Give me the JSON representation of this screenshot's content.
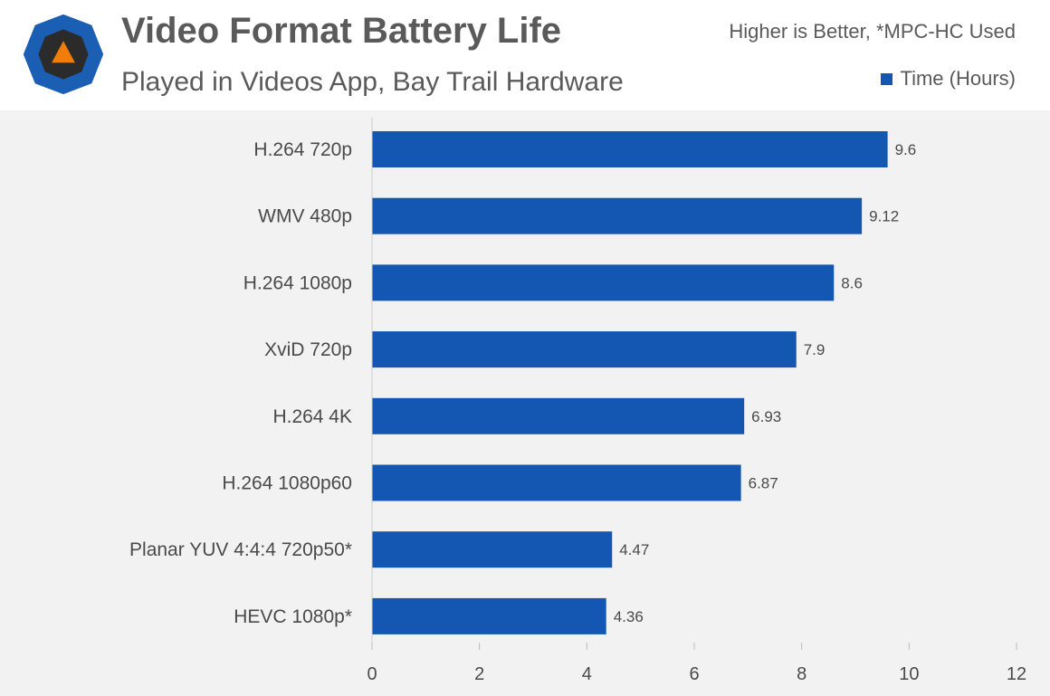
{
  "colors": {
    "bar": "#1457b3",
    "logo_outer": "#1a5fb4",
    "logo_inner": "#2b2b2b",
    "logo_triangle": "#f07d0a"
  },
  "icons": {
    "logo": "techspot-logo-icon"
  },
  "header": {
    "title": "Video Format Battery Life",
    "subtitle": "Played in Videos App, Bay Trail Hardware",
    "note": "Higher is Better, *MPC-HC Used",
    "legend_label": "Time (Hours)"
  },
  "chart_data": {
    "type": "bar",
    "orientation": "horizontal",
    "title": "Video Format Battery Life",
    "subtitle": "Played in Videos App, Bay Trail Hardware",
    "categories": [
      "H.264 720p",
      "WMV 480p",
      "H.264 1080p",
      "XviD 720p",
      "H.264 4K",
      "H.264 1080p60",
      "Planar YUV 4:4:4 720p50*",
      "HEVC 1080p*"
    ],
    "series": [
      {
        "name": "Time (Hours)",
        "values": [
          9.6,
          9.12,
          8.6,
          7.9,
          6.93,
          6.87,
          4.47,
          4.36
        ]
      }
    ],
    "value_labels": [
      "9.6",
      "9.12",
      "8.6",
      "7.9",
      "6.93",
      "6.87",
      "4.47",
      "4.36"
    ],
    "xlim": [
      0,
      12
    ],
    "xticks": [
      0,
      2,
      4,
      6,
      8,
      10,
      12
    ],
    "xlabel": "",
    "ylabel": "",
    "grid": false,
    "legend_position": "top-right"
  }
}
